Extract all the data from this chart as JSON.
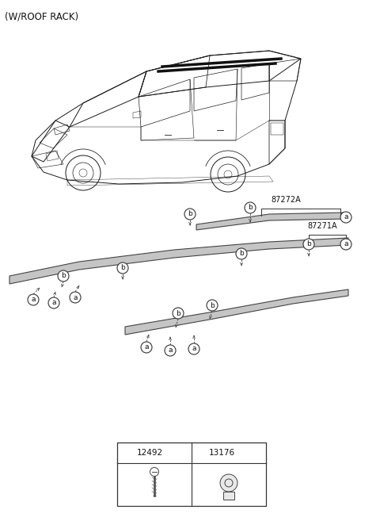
{
  "title": "(W/ROOF RACK)",
  "bg_color": "#ffffff",
  "part_label_87272A": "87272A",
  "part_label_87271A": "87271A",
  "legend_a_num": "12492",
  "legend_b_num": "13176",
  "text_color": "#111111",
  "line_color": "#333333",
  "rail_fc": "#c8c8c8",
  "rail_ec": "#555555",
  "callout_r": 7,
  "callout_fs": 6.5
}
